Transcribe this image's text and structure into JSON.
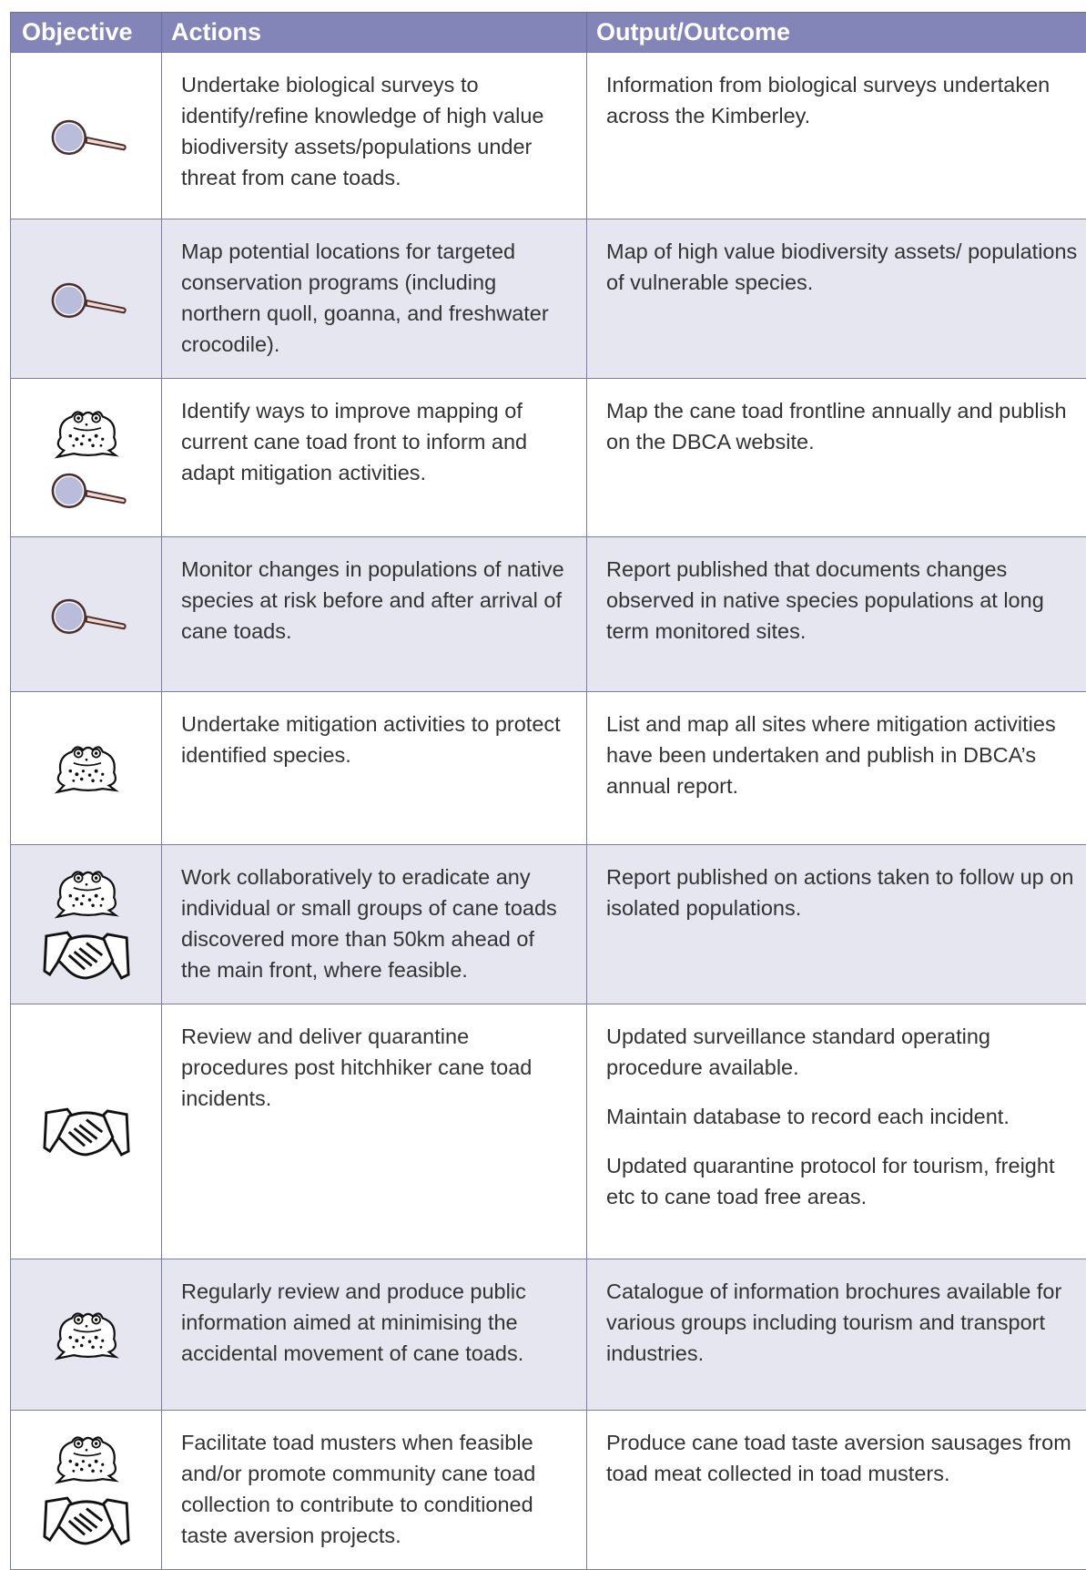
{
  "header": {
    "objective": "Objective",
    "actions": "Actions",
    "outcome": "Output/Outcome"
  },
  "rows": [
    {
      "action": "Undertake biological surveys to identify/refine knowledge of high value biodiversity assets/populations under threat from cane toads.",
      "outcome": [
        "Information from biological surveys undertaken across the Kimberley."
      ]
    },
    {
      "action": "Map potential locations for targeted conservation programs (including northern quoll, goanna, and freshwater crocodile).",
      "outcome": [
        "Map of high value biodiversity assets/ populations of vulnerable species."
      ]
    },
    {
      "action": "Identify ways to improve mapping of current cane toad front to inform and adapt mitigation activities.",
      "outcome": [
        "Map the cane toad frontline annually and publish on the DBCA website."
      ]
    },
    {
      "action": "Monitor changes in populations of native species at risk before and after arrival of cane toads.",
      "outcome": [
        "Report published that documents changes observed in native species populations at long term monitored sites."
      ]
    },
    {
      "action": "Undertake mitigation activities to protect identified species.",
      "outcome": [
        "List and map all sites where mitigation activities have been undertaken and publish in DBCA’s annual report."
      ]
    },
    {
      "action": "Work collaboratively to eradicate any individual or small groups of cane toads discovered more than 50km ahead of the main front, where feasible.",
      "outcome": [
        "Report published on actions taken to follow up on isolated populations."
      ]
    },
    {
      "action": "Review and deliver quarantine procedures post hitchhiker cane toad incidents.",
      "outcome": [
        "Updated surveillance standard operating procedure available.",
        "Maintain database to record each incident.",
        "Updated quarantine protocol for tourism, freight etc to cane toad free areas."
      ]
    },
    {
      "action": "Regularly review and produce public information aimed at minimising the accidental movement of cane toads.",
      "outcome": [
        "Catalogue of information brochures available for various groups including tourism and transport industries."
      ]
    },
    {
      "action": "Facilitate toad musters when feasible and/or promote community cane toad collection to contribute to conditioned taste aversion projects.",
      "outcome": [
        "Produce cane toad taste aversion sausages from toad meat collected in toad musters."
      ]
    }
  ]
}
